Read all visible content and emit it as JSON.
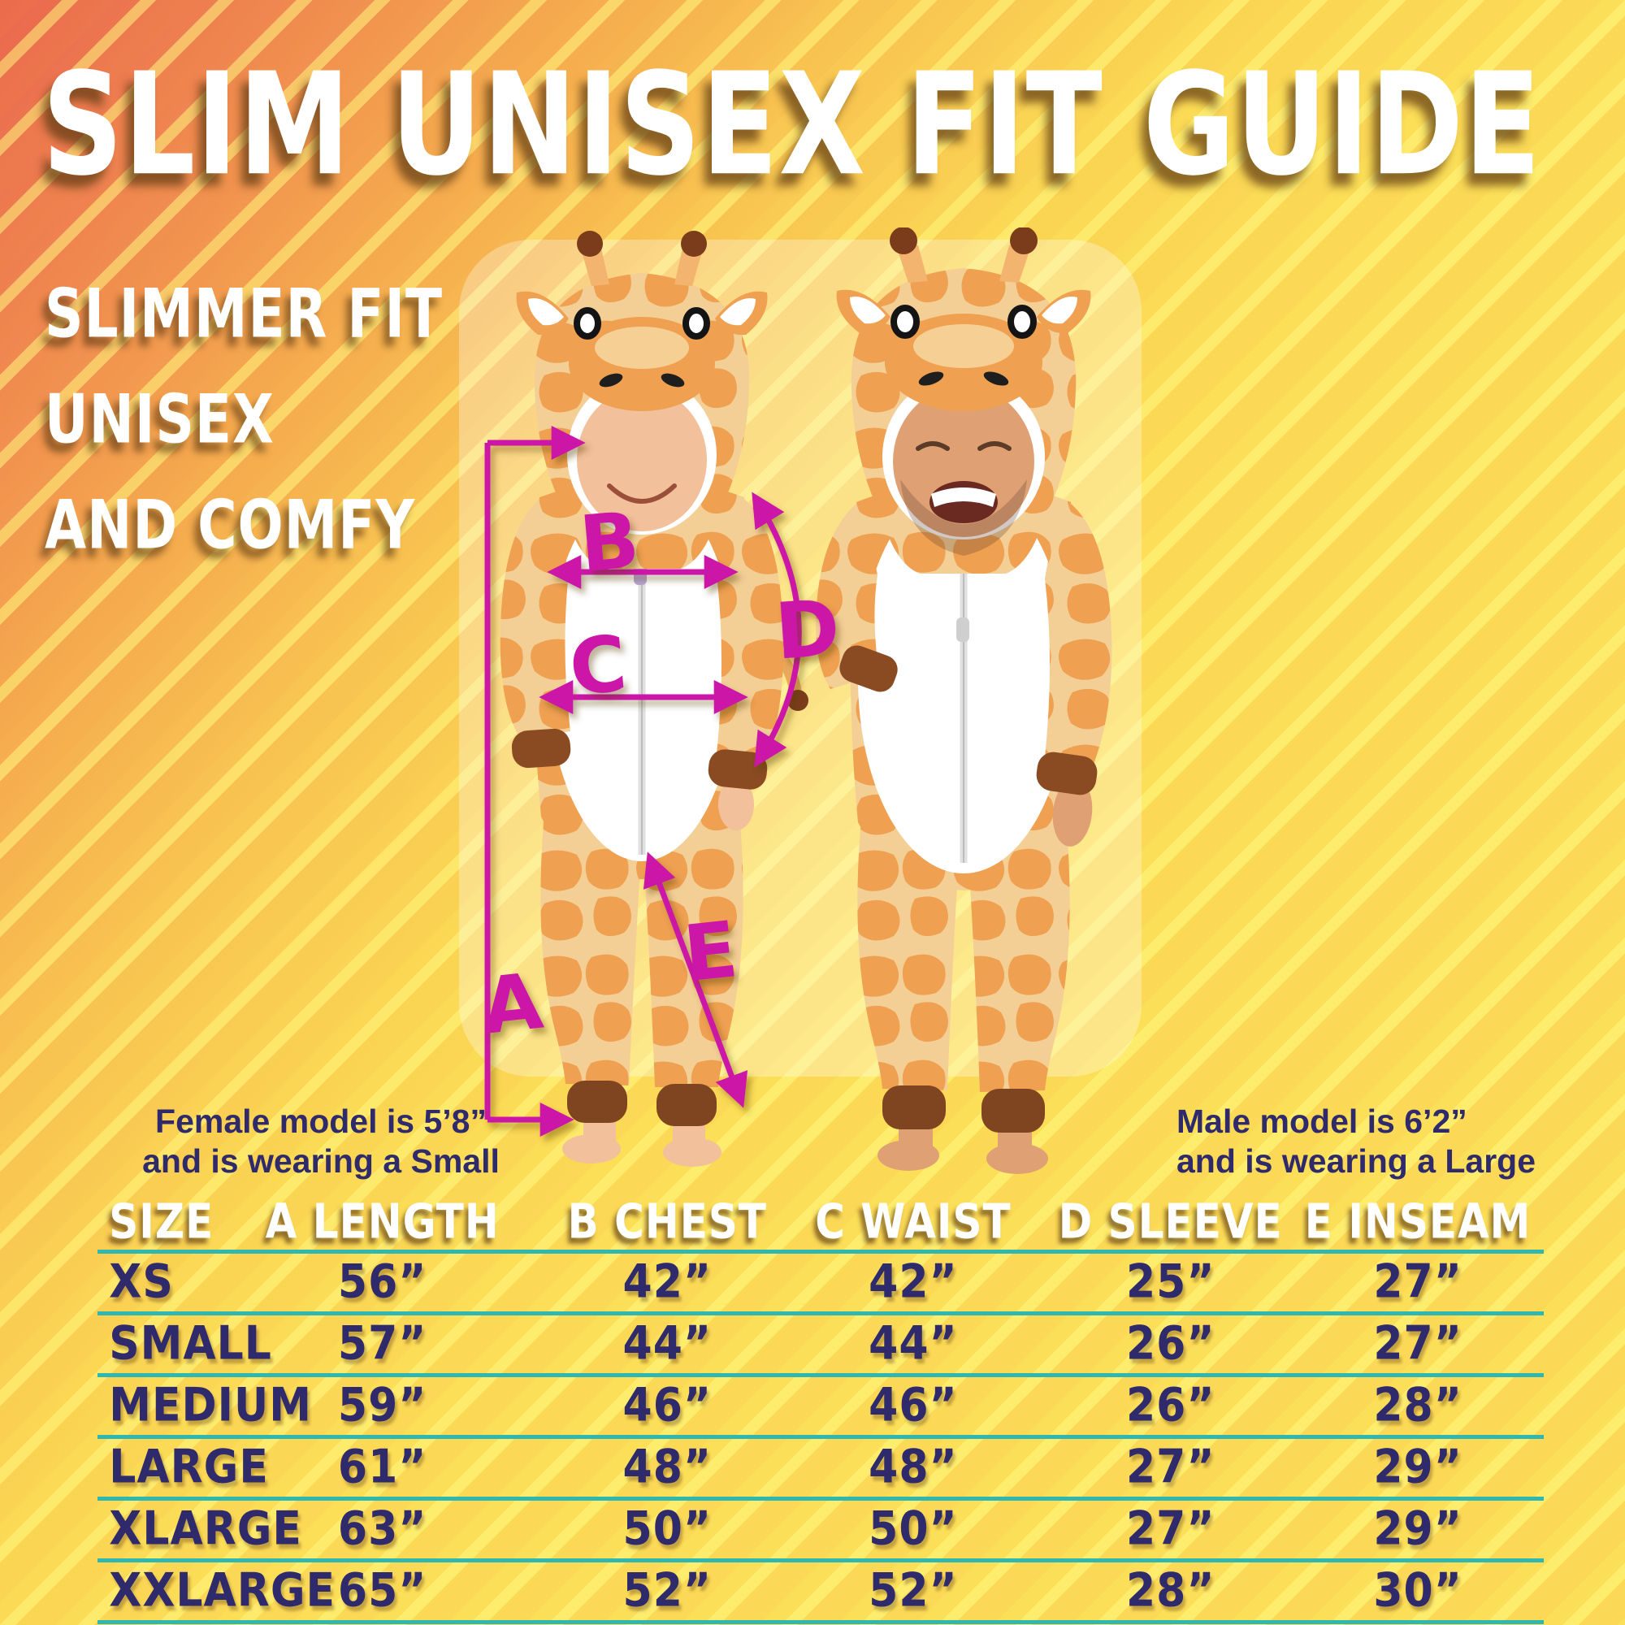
{
  "title": "SLIM UNISEX FIT GUIDE",
  "tagline": [
    "SLIMMER FIT",
    "UNISEX",
    "AND COMFY"
  ],
  "captions": {
    "female": [
      "Female model is 5’8”",
      "and is wearing a Small"
    ],
    "male": [
      "Male model is 6’2”",
      "and is wearing a Large"
    ]
  },
  "measurements": {
    "labels": [
      "A",
      "B",
      "C",
      "D",
      "E"
    ],
    "legend": [
      "A Length",
      "B Chest",
      "C Waist",
      "D Sleeve",
      "E Inseam"
    ],
    "color": "#cc17a7"
  },
  "sizing_table": {
    "columns": [
      "SIZE",
      "A LENGTH",
      "B CHEST",
      "C WAIST",
      "D SLEEVE",
      "E INSEAM"
    ],
    "rows": [
      [
        "XS",
        "56”",
        "42”",
        "42”",
        "25”",
        "27”"
      ],
      [
        "SMALL",
        "57”",
        "44”",
        "44”",
        "26”",
        "27”"
      ],
      [
        "MEDIUM",
        "59”",
        "46”",
        "46”",
        "26”",
        "28”"
      ],
      [
        "LARGE",
        "61”",
        "48”",
        "48”",
        "27”",
        "29”"
      ],
      [
        "XLARGE",
        "63”",
        "50”",
        "50”",
        "27”",
        "29”"
      ],
      [
        "XXLARGE",
        "65”",
        "52”",
        "52”",
        "28”",
        "30”"
      ]
    ]
  },
  "colors": {
    "magenta": "#cc17a7",
    "navy": "#2f2a6b",
    "teal": "#2fb7b0",
    "bg_orange": "#ea674e",
    "bg_yellow": "#fcdf58",
    "onesie_tan": "#f3cf96",
    "onesie_spot": "#efa050",
    "cuff_brown": "#8a4a22"
  }
}
